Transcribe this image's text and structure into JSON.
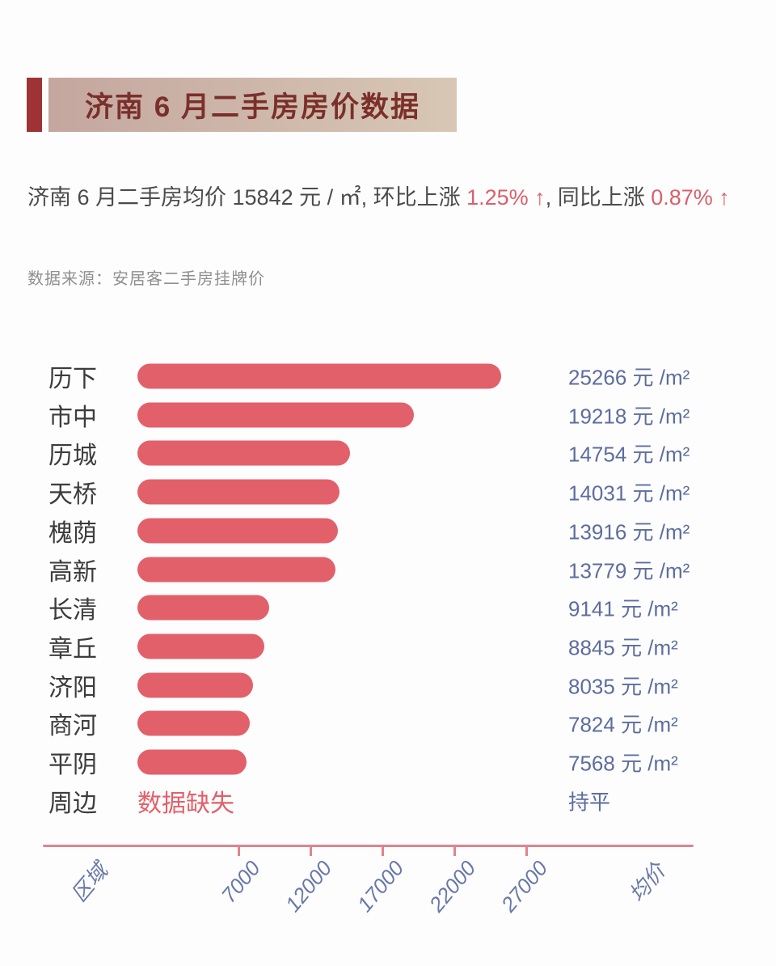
{
  "page": {
    "background": "#fdfdfd"
  },
  "header": {
    "title": "济南 6 月二手房房价数据",
    "accent_color": "#9e3336",
    "box_gradient_start": "#c4a7a0",
    "box_gradient_end": "#d8c7b5",
    "title_color": "#7b2f2b"
  },
  "summary": {
    "part1": "济南 6 月二手房均价 15842 元 / ㎡, 环比上涨 ",
    "mom_change": "1.25% ↑",
    "part2": ", 同比上涨 ",
    "yoy_change": "0.87% ↑",
    "highlight_color": "#db5f6b"
  },
  "source_note": "数据来源：安居客二手房挂牌价",
  "chart_data": {
    "type": "bar",
    "orientation": "horizontal",
    "title": "济南 6 月二手房房价数据",
    "categories": [
      "历下",
      "市中",
      "历城",
      "天桥",
      "槐荫",
      "高新",
      "长清",
      "章丘",
      "济阳",
      "商河",
      "平阴",
      "周边"
    ],
    "values": [
      25266,
      19218,
      14754,
      14031,
      13916,
      13779,
      9141,
      8845,
      8035,
      7824,
      7568,
      null
    ],
    "value_suffix": " 元 /m²",
    "missing_bar_text": "数据缺失",
    "missing_value_text": "持平",
    "bar_color": "#e2606a",
    "value_color": "#5d6d9e",
    "grid": false,
    "xaxis": {
      "ticks": [
        7000,
        12000,
        17000,
        22000,
        27000
      ],
      "left_label": "区域",
      "right_label": "均价",
      "xlim": [
        0,
        30000
      ],
      "axis_color": "#dd858e",
      "tick_label_color": "#6878a8"
    }
  }
}
